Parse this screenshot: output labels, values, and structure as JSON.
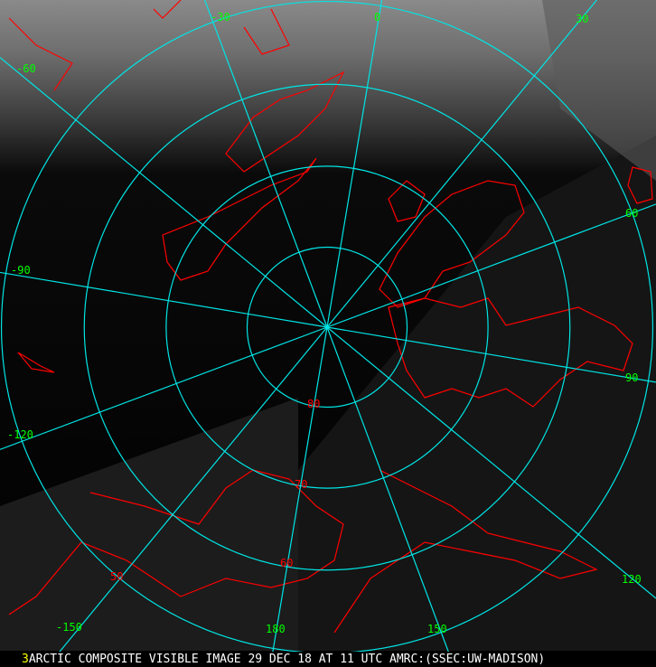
{
  "image": {
    "caption_prefix": "3",
    "caption": "ARCTIC COMPOSITE VISIBLE IMAGE 29 DEC 18 AT 11 UTC AMRC:(SSEC:UW-MADISON)",
    "projection": "polar stereographic, north pole centered",
    "colors": {
      "graticule": "#00e5e5",
      "coastline": "#ff0000",
      "longitude_labels": "#00ff00",
      "latitude_labels": "#ff0000",
      "caption_prefix": "#ffff00",
      "caption": "#ffffff"
    },
    "latitude_circles": [
      80,
      70,
      60,
      50
    ],
    "latitude_labels": [
      "80",
      "70",
      "60",
      "50"
    ],
    "longitude_meridians": [
      0,
      30,
      60,
      90,
      120,
      150,
      180,
      -150,
      -120,
      -90,
      -60,
      -30
    ],
    "longitude_labels": [
      "0",
      "30",
      "60",
      "90",
      "120",
      "150",
      "180",
      "-150",
      "-120",
      "-90",
      "-60",
      "-30"
    ]
  }
}
